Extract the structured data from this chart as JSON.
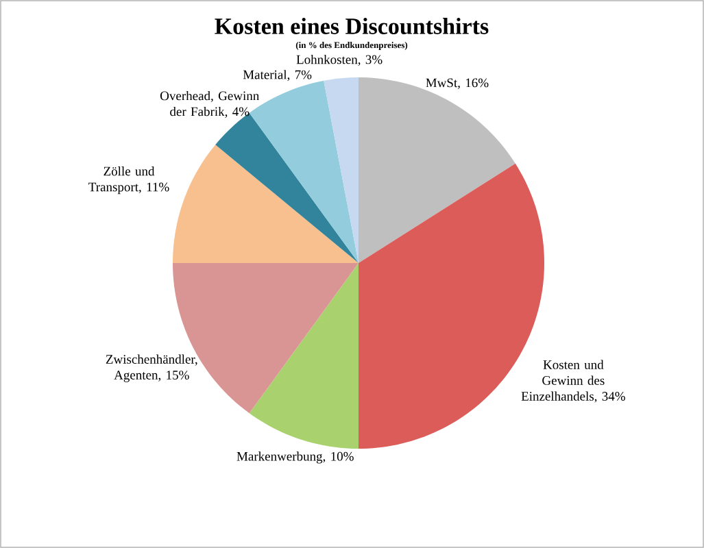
{
  "chart_data": {
    "type": "pie",
    "title": "Kosten eines Discountshirts",
    "subtitle": "(in % des Endkundenpreises)",
    "categories": [
      "MwSt, 16%",
      "Kosten und Gewinn des Einzelhandels, 34%",
      "Markenwerbung, 10%",
      "Zwischenhändler, Agenten, 15%",
      "Zölle und Transport, 11%",
      "Overhead, Gewinn der Fabrik, 4%",
      "Material, 7%",
      "Lohnkosten, 3%"
    ],
    "values": [
      16,
      34,
      10,
      15,
      11,
      4,
      7,
      3
    ],
    "colors": [
      "#bfbfbf",
      "#dc5c5a",
      "#a9d26f",
      "#d99594",
      "#f9c08f",
      "#31849b",
      "#93cddd",
      "#c6d9f1"
    ]
  }
}
